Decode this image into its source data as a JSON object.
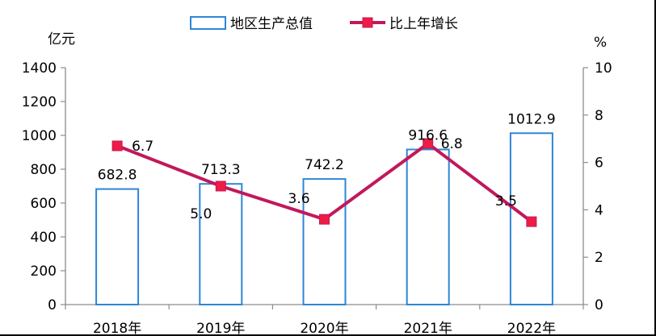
{
  "chart_data": {
    "type": "bar",
    "categories": [
      "2018年",
      "2019年",
      "2020年",
      "2021年",
      "2022年"
    ],
    "series": [
      {
        "name": "地区生产总值",
        "type": "bar",
        "axis": "left",
        "values": [
          682.8,
          713.3,
          742.2,
          916.6,
          1012.9
        ],
        "labels": [
          "682.8",
          "713.3",
          "742.2",
          "916.6",
          "1012.9"
        ]
      },
      {
        "name": "比上年增长",
        "type": "line",
        "axis": "right",
        "values": [
          6.7,
          5.0,
          3.6,
          6.8,
          3.5
        ],
        "labels": [
          "6.7",
          "5.0",
          "3.6",
          "6.8",
          "3.5"
        ]
      }
    ],
    "ylabel_left": "亿元",
    "ylabel_right": "%",
    "ylim_left": [
      0,
      1400
    ],
    "ylim_right": [
      0,
      10
    ],
    "yticks_left": [
      "0",
      "200",
      "400",
      "600",
      "800",
      "1000",
      "1200",
      "1400"
    ],
    "yticks_right": [
      "0",
      "2",
      "4",
      "6",
      "8",
      "10"
    ],
    "grid": false,
    "legend_position": "top-center",
    "colors": {
      "bar_fill": "#ffffff",
      "bar_stroke": "#2e86d6",
      "line": "#c2185b",
      "marker": "#ee1c45",
      "axis": "#8c8c8c",
      "text": "#000000"
    }
  }
}
